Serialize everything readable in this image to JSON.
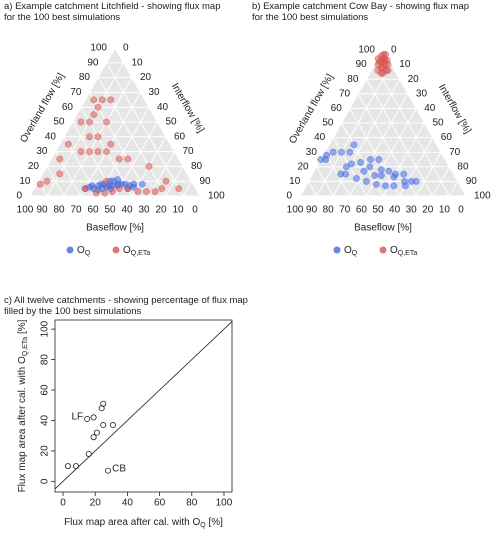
{
  "chart_data": [
    {
      "type": "ternary",
      "title": [
        "a) Example catchment Litchfield - showing flux map",
        "for the 100 best simulations"
      ],
      "axis_labels": {
        "overland": "Overland flow [%]",
        "interflow": "Interflow [%]",
        "baseflow": "Baseflow [%]"
      },
      "ticks": [
        0,
        10,
        20,
        30,
        40,
        50,
        60,
        70,
        80,
        90,
        100
      ],
      "grid": true,
      "series": [
        {
          "name": "O",
          "name_sub": "Q",
          "color": "#4169e1",
          "baseflow": [
            55,
            50,
            45,
            40,
            60,
            52,
            48,
            42,
            38,
            35,
            58,
            62,
            46,
            44,
            56,
            50,
            40,
            65,
            36,
            30,
            52,
            48,
            54,
            60,
            43
          ],
          "interflow": [
            40,
            43,
            48,
            52,
            33,
            42,
            45,
            50,
            55,
            57,
            38,
            32,
            44,
            48,
            37,
            45,
            55,
            30,
            58,
            62,
            40,
            42,
            38,
            35,
            46
          ],
          "overland": [
            5,
            7,
            7,
            8,
            7,
            6,
            7,
            8,
            7,
            8,
            4,
            6,
            10,
            8,
            7,
            5,
            5,
            5,
            6,
            8,
            8,
            10,
            8,
            5,
            11
          ]
        },
        {
          "name": "O",
          "name_sub": "Q,ETa",
          "color": "#d9534f",
          "baseflow": [
            40,
            45,
            50,
            35,
            55,
            60,
            30,
            25,
            20,
            85,
            90,
            75,
            70,
            60,
            55,
            50,
            45,
            40,
            35,
            30,
            35,
            40,
            20,
            15,
            50,
            65,
            10,
            45,
            30,
            40,
            35,
            45,
            30,
            25,
            30,
            20
          ],
          "interflow": [
            55,
            50,
            47,
            62,
            43,
            38,
            67,
            72,
            75,
            5,
            2,
            10,
            5,
            5,
            15,
            20,
            15,
            30,
            40,
            45,
            30,
            20,
            60,
            75,
            40,
            30,
            85,
            25,
            20,
            10,
            10,
            5,
            10,
            10,
            5,
            15
          ],
          "overland": [
            5,
            5,
            3,
            3,
            2,
            2,
            3,
            3,
            5,
            10,
            8,
            15,
            25,
            35,
            30,
            30,
            40,
            30,
            25,
            25,
            35,
            40,
            20,
            10,
            10,
            5,
            5,
            30,
            50,
            50,
            55,
            50,
            60,
            65,
            65,
            65
          ]
        }
      ]
    },
    {
      "type": "ternary",
      "title": [
        "b) Example catchment Cow Bay - showing flux map",
        "for the 100 best simulations"
      ],
      "axis_labels": {
        "overland": "Overland flow [%]",
        "interflow": "Interflow [%]",
        "baseflow": "Baseflow [%]"
      },
      "ticks": [
        0,
        10,
        20,
        30,
        40,
        50,
        60,
        70,
        80,
        90,
        100
      ],
      "grid": true,
      "series": [
        {
          "name": "O",
          "name_sub": "Q",
          "color": "#4169e1",
          "baseflow": [
            75,
            72,
            70,
            65,
            60,
            55,
            50,
            62,
            58,
            52,
            45,
            40,
            48,
            42,
            38,
            35,
            30,
            28,
            33,
            40,
            45,
            50,
            55,
            60,
            65,
            68,
            48,
            53,
            44,
            37,
            32,
            25
          ],
          "interflow": [
            0,
            3,
            2,
            5,
            10,
            15,
            15,
            18,
            20,
            25,
            30,
            35,
            32,
            40,
            45,
            50,
            55,
            62,
            60,
            53,
            48,
            42,
            35,
            28,
            20,
            17,
            38,
            30,
            42,
            50,
            58,
            65
          ],
          "overland": [
            25,
            25,
            28,
            30,
            30,
            30,
            35,
            20,
            22,
            23,
            25,
            25,
            20,
            18,
            17,
            15,
            15,
            10,
            7,
            7,
            7,
            8,
            10,
            12,
            15,
            15,
            14,
            17,
            14,
            13,
            10,
            10
          ]
        },
        {
          "name": "O",
          "name_sub": "Q,ETa",
          "color": "#d9534f",
          "baseflow": [
            5,
            3,
            8,
            2,
            6,
            10,
            4,
            1,
            3,
            7,
            5,
            9,
            2,
            6,
            4,
            8,
            1,
            6,
            0,
            3
          ],
          "interflow": [
            3,
            5,
            2,
            8,
            6,
            4,
            10,
            2,
            1,
            5,
            9,
            7,
            4,
            2,
            6,
            8,
            6,
            0,
            3,
            3
          ],
          "overland": [
            92,
            92,
            90,
            90,
            88,
            86,
            86,
            97,
            96,
            88,
            86,
            84,
            94,
            92,
            90,
            84,
            93,
            94,
            97,
            94
          ]
        }
      ]
    },
    {
      "type": "scatter",
      "title": [
        "c) All twelve catchments - showing percentage of flux map",
        "filled by the 100 best simulations"
      ],
      "xlabel": "Flux map area after cal. with O",
      "xlabel_sub": "Q",
      "xlabel_end": " [%]",
      "ylabel": "Flux map area after cal. with O",
      "ylabel_sub": "Q,ETa",
      "ylabel_end": " [%]",
      "x": [
        3,
        8,
        16,
        19,
        21,
        19,
        15,
        24,
        25,
        25,
        31,
        28
      ],
      "y": [
        10,
        10,
        18,
        29,
        32,
        42,
        41,
        48,
        51,
        37,
        37,
        7
      ],
      "point_labels": [
        null,
        null,
        null,
        null,
        null,
        null,
        "LF",
        null,
        null,
        null,
        null,
        "CB"
      ],
      "xlim": [
        -5,
        105
      ],
      "ylim": [
        -7,
        106
      ],
      "xticks": [
        0,
        20,
        40,
        60,
        80,
        100
      ],
      "yticks": [
        0,
        20,
        40,
        60,
        80,
        100
      ],
      "diagonal": true
    }
  ]
}
